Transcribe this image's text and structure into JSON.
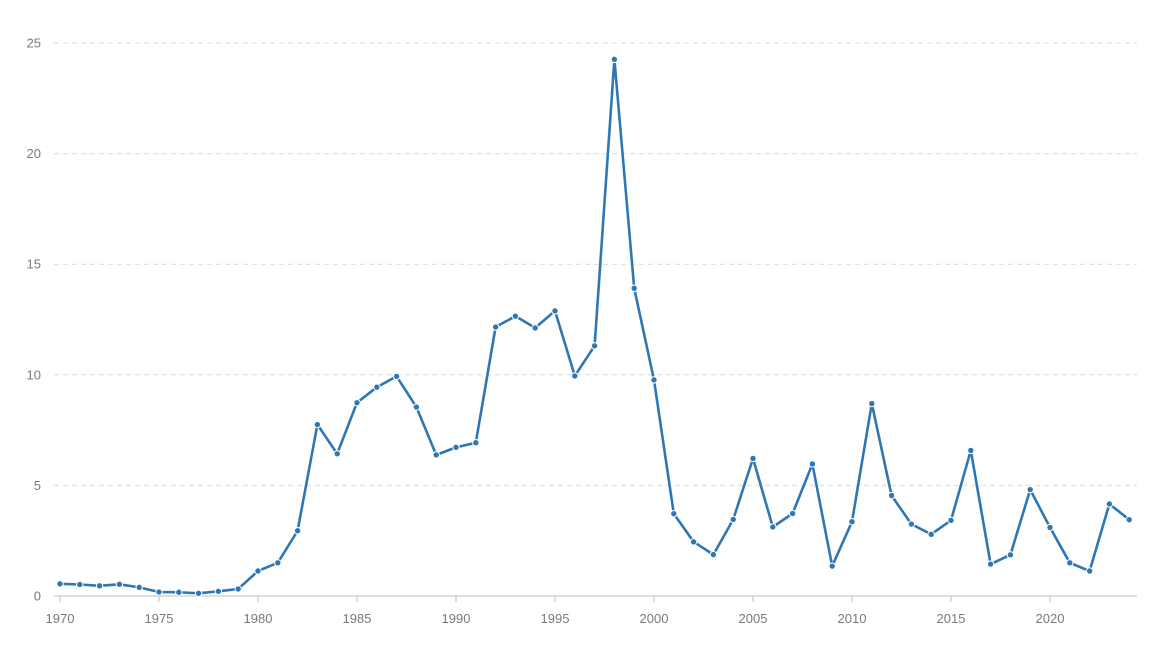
{
  "chart_data": {
    "type": "line",
    "title": "",
    "xlabel": "",
    "ylabel": "",
    "xlim": [
      1970,
      2025
    ],
    "ylim": [
      0,
      25
    ],
    "grid": true,
    "x_ticks": [
      1970,
      1975,
      1980,
      1985,
      1990,
      1995,
      2000,
      2005,
      2010,
      2015,
      2020
    ],
    "y_ticks": [
      0,
      5,
      10,
      15,
      20,
      25
    ],
    "colors": {
      "series": "#2e77b3",
      "grid": "#d9d9d9",
      "axis": "#bdbdbd",
      "tick_text": "#7a7a7a"
    },
    "x": [
      1970,
      1971,
      1972,
      1973,
      1974,
      1975,
      1976,
      1977,
      1978,
      1979,
      1980,
      1981,
      1982,
      1983,
      1984,
      1985,
      1986,
      1987,
      1988,
      1989,
      1990,
      1991,
      1992,
      1993,
      1994,
      1995,
      1996,
      1997,
      1998,
      1999,
      2000,
      2001,
      2002,
      2003,
      2004,
      2005,
      2006,
      2007,
      2008,
      2009,
      2010,
      2011,
      2012,
      2013,
      2014,
      2015,
      2016,
      2017,
      2018,
      2019,
      2020,
      2021,
      2022,
      2023,
      2024
    ],
    "series": [
      {
        "values": [
          0.55,
          0.52,
          0.46,
          0.53,
          0.39,
          0.18,
          0.17,
          0.12,
          0.21,
          0.32,
          1.13,
          1.5,
          2.95,
          7.75,
          6.43,
          8.74,
          9.44,
          9.93,
          8.54,
          6.38,
          6.72,
          6.93,
          12.16,
          12.65,
          12.12,
          12.89,
          9.95,
          11.31,
          24.26,
          13.91,
          9.77,
          3.72,
          2.45,
          1.87,
          3.46,
          6.22,
          3.12,
          3.73,
          5.97,
          1.35,
          3.36,
          8.7,
          4.54,
          3.25,
          2.79,
          3.42,
          6.58,
          1.44,
          1.86,
          4.81,
          3.1,
          1.5,
          1.13,
          4.16,
          3.45
        ]
      }
    ]
  }
}
